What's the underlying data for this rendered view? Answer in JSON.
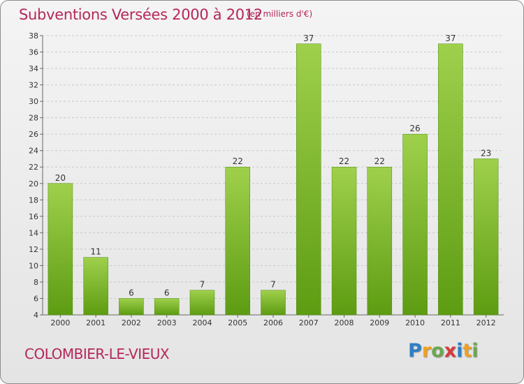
{
  "header": {
    "title": "Subventions Versées 2000 à 2012",
    "unit_note": "(en milliers d'€)"
  },
  "footer": {
    "commune": "COLOMBIER-LE-VIEUX",
    "logo": {
      "text": "Proxiti",
      "letters": [
        {
          "char": "P",
          "color": "#2e7fc6"
        },
        {
          "char": "r",
          "color": "#f0a020"
        },
        {
          "char": "o",
          "color": "#6aa84f"
        },
        {
          "char": "x",
          "color": "#d93a3a"
        },
        {
          "char": "i",
          "color": "#2e7fc6"
        },
        {
          "char": "t",
          "color": "#f0a020"
        },
        {
          "char": "i",
          "color": "#6aa84f"
        }
      ]
    }
  },
  "colors": {
    "accent": "#b5265a",
    "bar_top": "#9fd04c",
    "bar_bottom": "#5d9c12",
    "grid": "#c8c8c8"
  },
  "chart_data": {
    "type": "bar",
    "title": "Subventions Versées 2000 à 2012",
    "subtitle": "(en milliers d'€)",
    "categories": [
      "2000",
      "2001",
      "2002",
      "2003",
      "2004",
      "2005",
      "2006",
      "2007",
      "2008",
      "2009",
      "2010",
      "2011",
      "2012"
    ],
    "values": [
      20,
      11,
      6,
      6,
      7,
      22,
      7,
      37,
      22,
      22,
      26,
      37,
      23
    ],
    "ylim": [
      4,
      38
    ],
    "yticks": [
      4,
      6,
      8,
      10,
      12,
      14,
      16,
      18,
      20,
      22,
      24,
      26,
      28,
      30,
      32,
      34,
      36,
      38
    ],
    "grid": true,
    "show_value_labels": true
  }
}
